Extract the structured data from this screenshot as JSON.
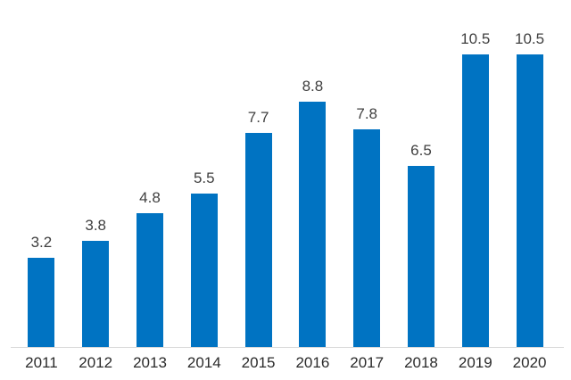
{
  "chart_data": {
    "type": "bar",
    "categories": [
      "2011",
      "2012",
      "2013",
      "2014",
      "2015",
      "2016",
      "2017",
      "2018",
      "2019",
      "2020"
    ],
    "values": [
      3.2,
      3.8,
      4.8,
      5.5,
      7.7,
      8.8,
      7.8,
      6.5,
      10.5,
      10.5
    ],
    "data_labels": [
      "3.2",
      "3.8",
      "4.8",
      "5.5",
      "7.7",
      "8.8",
      "7.8",
      "6.5",
      "10.5",
      "10.5"
    ],
    "title": "",
    "xlabel": "",
    "ylabel": "",
    "ylim": [
      0,
      10.5
    ],
    "grid": false,
    "legend": false,
    "y_axis_visible": false,
    "colors": {
      "bar": "#0073C2",
      "value_label": "#404040",
      "tick_label": "#2b2b2b",
      "axis_line": "#D9D9D9",
      "background": "#FFFFFF"
    }
  }
}
